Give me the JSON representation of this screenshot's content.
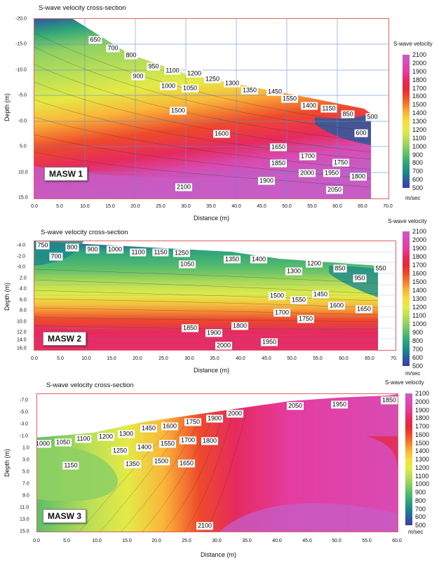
{
  "colorbar_levels": [
    2100,
    2000,
    1900,
    1800,
    1700,
    1600,
    1500,
    1400,
    1300,
    1200,
    1100,
    1000,
    900,
    800,
    700,
    600,
    500
  ],
  "colorbar_colors": [
    "#c65cc4",
    "#d84bb3",
    "#e43ca0",
    "#e62a5e",
    "#e6273a",
    "#ee4a2a",
    "#f47e2a",
    "#fab63a",
    "#f7dd3a",
    "#e4ea46",
    "#bde055",
    "#8fd063",
    "#5bbe6a",
    "#2fa57a",
    "#1d8a8a",
    "#2a5c9e",
    "#3a3fa8"
  ],
  "colorbar_title": "S-wave velocity",
  "colorbar_unit": "m/sec",
  "panels": [
    {
      "title": "S-wave velocity cross-section",
      "badge": "MASW 1",
      "xlabel": "Distance (m)",
      "ylabel": "Depth (m)",
      "xticks": [
        "0.0",
        "5.0",
        "10.0",
        "15.0",
        "20.0",
        "25.0",
        "30.0",
        "35.0",
        "40.0",
        "45.0",
        "50.0",
        "55.0",
        "60.0",
        "65.0",
        "70.0"
      ],
      "yticks": [
        "-20.0",
        "-15.0",
        "-10.0",
        "-5.0",
        "-0.0",
        "5.0",
        "10.0",
        "15.0"
      ],
      "contour_labels": [
        "650",
        "700",
        "800",
        "950",
        "1100",
        "1200",
        "1250",
        "1300",
        "1350",
        "1450",
        "1550",
        "1400",
        "1150",
        "850",
        "500",
        "900",
        "1000",
        "1050",
        "1500",
        "1600",
        "600",
        "1650",
        "1700",
        "1750",
        "1850",
        "1900",
        "2000",
        "1950",
        "1800",
        "2100",
        "2050"
      ]
    },
    {
      "title": "S-wave velocity cross-section",
      "badge": "MASW 2",
      "xlabel": "Distance (m)",
      "ylabel": "Depth (m)",
      "xticks": [
        "0.0",
        "5.0",
        "10.0",
        "15.0",
        "20.0",
        "25.0",
        "30.0",
        "35.0",
        "40.0",
        "45.0",
        "50.0",
        "55.0",
        "60.0",
        "65.0",
        "70."
      ],
      "yticks": [
        "-4.0",
        "-2.0",
        "-0.0",
        "2.0",
        "4.0",
        "6.0",
        "8.0",
        "10.0",
        "12.0",
        "14.0",
        "16.0"
      ],
      "contour_labels": [
        "750",
        "800",
        "900",
        "1000",
        "1100",
        "1150",
        "1250",
        "700",
        "1050",
        "1350",
        "1400",
        "1300",
        "1200",
        "850",
        "550",
        "950",
        "1500",
        "1550",
        "1450",
        "1600",
        "1650",
        "1700",
        "1750",
        "1850",
        "1800",
        "1900",
        "2000",
        "1950"
      ]
    },
    {
      "title": "S-wave velocity cross-section",
      "badge": "MASW 3",
      "xlabel": "Distance (m)",
      "ylabel": "Depth (m)",
      "xticks": [
        "0.0",
        "5.0",
        "10.0",
        "15.0",
        "20.0",
        "25.0",
        "30.0",
        "35.0",
        "40.0",
        "45.0",
        "50.0",
        "55.0",
        "60.0"
      ],
      "yticks": [
        "-7.0",
        "-5.0",
        "-3.0",
        "-1.0",
        "1.0",
        "3.0",
        "5.0",
        "7.0",
        "9.0",
        "11.0",
        "13.0",
        "15.0"
      ],
      "contour_labels": [
        "2050",
        "1950",
        "1850",
        "2000",
        "1900",
        "1750",
        "1600",
        "1450",
        "1300",
        "1200",
        "1100",
        "1050",
        "1000",
        "1800",
        "1700",
        "1550",
        "1400",
        "1250",
        "1150",
        "1350",
        "1500",
        "1650",
        "2100"
      ]
    }
  ],
  "chart_data": [
    {
      "type": "heatmap",
      "title": "S-wave velocity cross-section",
      "label": "MASW 1",
      "xlabel": "Distance (m)",
      "ylabel": "Depth (m)",
      "xlim": [
        0,
        70
      ],
      "ylim": [
        -20,
        15
      ],
      "colorbar": {
        "label": "S-wave velocity",
        "unit": "m/sec",
        "range": [
          500,
          2100
        ]
      },
      "contour_labels": [
        650,
        700,
        800,
        950,
        1100,
        1200,
        1250,
        1300,
        1350,
        1450,
        1550,
        1400,
        1150,
        850,
        500,
        900,
        1000,
        1050,
        1500,
        1600,
        600,
        1650,
        1700,
        1750,
        1850,
        1900,
        2000,
        1950,
        1800,
        2100,
        2050
      ]
    },
    {
      "type": "heatmap",
      "title": "S-wave velocity cross-section",
      "label": "MASW 2",
      "xlabel": "Distance (m)",
      "ylabel": "Depth (m)",
      "xlim": [
        0,
        70
      ],
      "ylim": [
        -4,
        16
      ],
      "colorbar": {
        "label": "S-wave velocity",
        "unit": "m/sec",
        "range": [
          500,
          2100
        ]
      },
      "contour_labels": [
        750,
        800,
        900,
        1000,
        1100,
        1150,
        1250,
        700,
        1050,
        1350,
        1400,
        1300,
        1200,
        850,
        550,
        950,
        1500,
        1550,
        1450,
        1600,
        1650,
        1700,
        1750,
        1850,
        1800,
        1900,
        2000,
        1950
      ]
    },
    {
      "type": "heatmap",
      "title": "S-wave velocity cross-section",
      "label": "MASW 3",
      "xlabel": "Distance (m)",
      "ylabel": "Depth (m)",
      "xlim": [
        0,
        60
      ],
      "ylim": [
        -7,
        15
      ],
      "colorbar": {
        "label": "S-wave velocity",
        "unit": "m/sec",
        "range": [
          500,
          2100
        ]
      },
      "contour_labels": [
        2050,
        1950,
        1850,
        2000,
        1900,
        1750,
        1600,
        1450,
        1300,
        1200,
        1100,
        1050,
        1000,
        1800,
        1700,
        1550,
        1400,
        1250,
        1150,
        1350,
        1500,
        1650,
        2100
      ]
    }
  ]
}
